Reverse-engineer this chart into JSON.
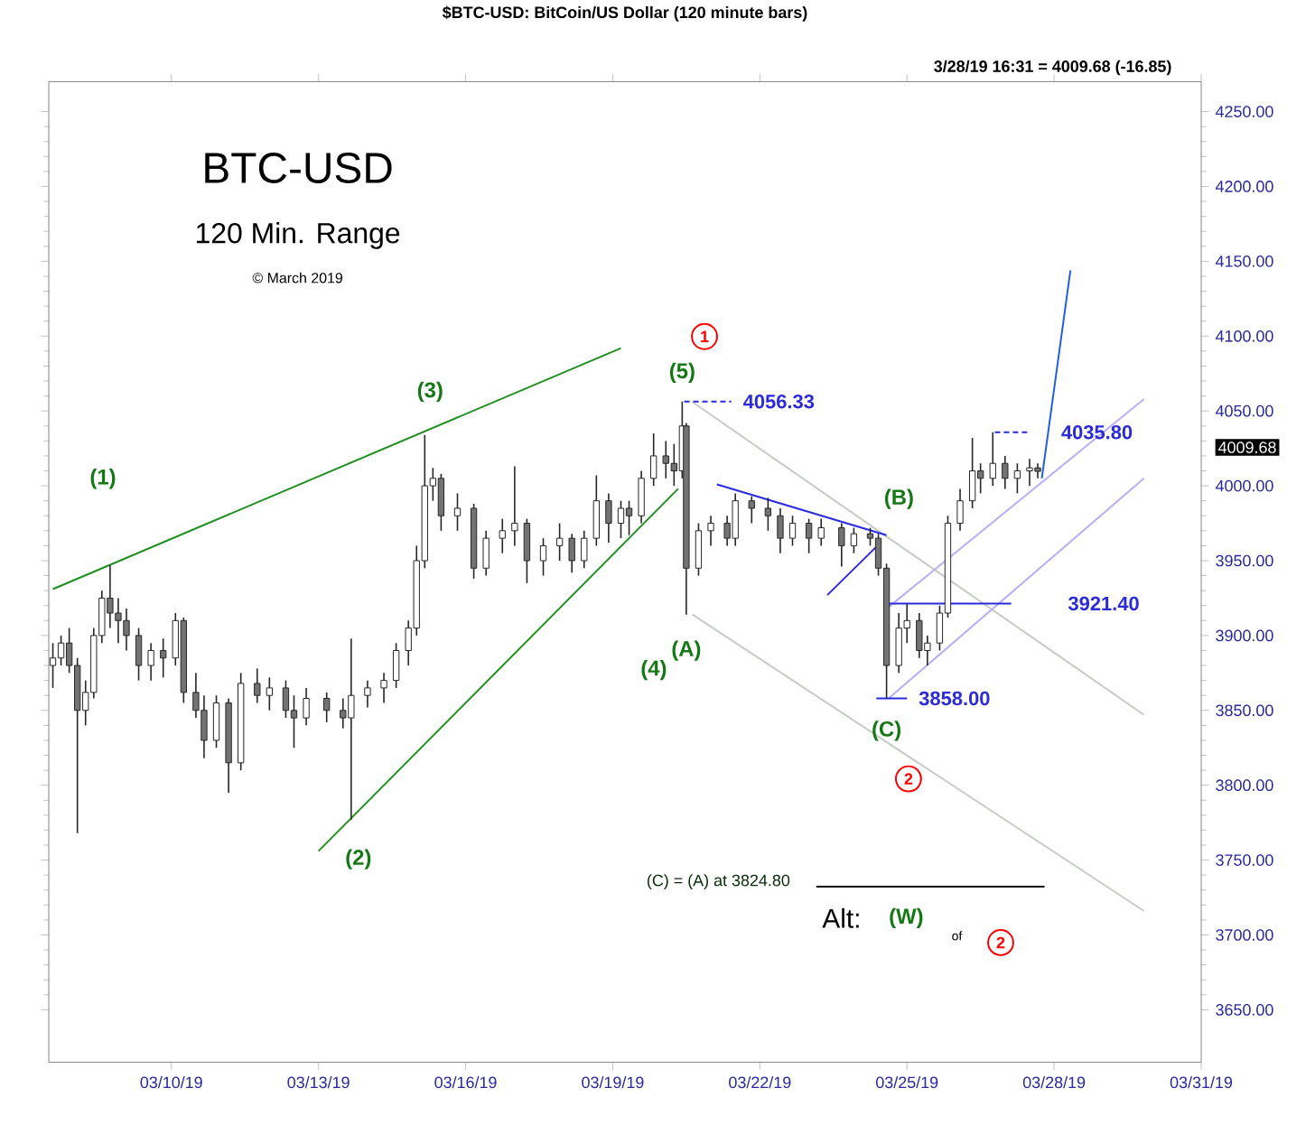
{
  "chart_data": {
    "type": "candlestick",
    "title": "$BTC-USD:  BitCoin/US Dollar  (120 minute bars)",
    "subtitle": "3/28/19 16:31 = 4009.68 (-16.85)",
    "x": [
      "2019-03-07T14:00",
      "2019-03-07T18:00",
      "2019-03-07T22:00",
      "2019-03-08T02:00",
      "2019-03-08T06:00",
      "2019-03-08T10:00",
      "2019-03-08T14:00",
      "2019-03-08T18:00",
      "2019-03-08T22:00",
      "2019-03-09T02:00",
      "2019-03-09T08:00",
      "2019-03-09T14:00",
      "2019-03-09T20:00",
      "2019-03-10T02:00",
      "2019-03-10T06:00",
      "2019-03-10T12:00",
      "2019-03-10T16:00",
      "2019-03-10T22:00",
      "2019-03-11T04:00",
      "2019-03-11T10:00",
      "2019-03-11T18:00",
      "2019-03-12T00:00",
      "2019-03-12T08:00",
      "2019-03-12T12:00",
      "2019-03-12T18:00",
      "2019-03-13T04:00",
      "2019-03-13T12:00",
      "2019-03-13T16:00",
      "2019-03-14T00:00",
      "2019-03-14T08:00",
      "2019-03-14T14:00",
      "2019-03-14T20:00",
      "2019-03-15T00:00",
      "2019-03-15T04:00",
      "2019-03-15T08:00",
      "2019-03-15T12:00",
      "2019-03-15T20:00",
      "2019-03-16T04:00",
      "2019-03-16T10:00",
      "2019-03-16T18:00",
      "2019-03-17T00:00",
      "2019-03-17T06:00",
      "2019-03-17T14:00",
      "2019-03-17T22:00",
      "2019-03-18T04:00",
      "2019-03-18T10:00",
      "2019-03-18T16:00",
      "2019-03-18T22:00",
      "2019-03-19T04:00",
      "2019-03-19T08:00",
      "2019-03-19T14:00",
      "2019-03-19T20:00",
      "2019-03-20T02:00",
      "2019-03-20T06:00",
      "2019-03-20T10:00",
      "2019-03-20T12:00",
      "2019-03-20T18:00",
      "2019-03-21T00:00",
      "2019-03-21T08:00",
      "2019-03-21T12:00",
      "2019-03-21T20:00",
      "2019-03-22T04:00",
      "2019-03-22T10:00",
      "2019-03-22T16:00",
      "2019-03-23T00:00",
      "2019-03-23T06:00",
      "2019-03-23T16:00",
      "2019-03-23T22:00",
      "2019-03-24T06:00",
      "2019-03-24T10:00",
      "2019-03-24T14:00",
      "2019-03-24T20:00",
      "2019-03-25T00:00",
      "2019-03-25T06:00",
      "2019-03-25T10:00",
      "2019-03-25T16:00",
      "2019-03-25T20:00",
      "2019-03-26T02:00",
      "2019-03-26T08:00",
      "2019-03-26T12:00",
      "2019-03-26T18:00",
      "2019-03-27T00:00",
      "2019-03-27T06:00",
      "2019-03-27T12:00",
      "2019-03-27T16:00"
    ],
    "ohlc": [
      [
        3880,
        3895,
        3865,
        3885
      ],
      [
        3885,
        3900,
        3880,
        3895
      ],
      [
        3895,
        3905,
        3875,
        3880
      ],
      [
        3880,
        3885,
        3768,
        3850
      ],
      [
        3850,
        3870,
        3840,
        3862
      ],
      [
        3862,
        3905,
        3858,
        3900
      ],
      [
        3900,
        3930,
        3895,
        3925
      ],
      [
        3925,
        3947,
        3905,
        3915
      ],
      [
        3915,
        3925,
        3895,
        3910
      ],
      [
        3910,
        3918,
        3890,
        3900
      ],
      [
        3900,
        3905,
        3870,
        3880
      ],
      [
        3880,
        3895,
        3870,
        3890
      ],
      [
        3890,
        3898,
        3872,
        3885
      ],
      [
        3885,
        3915,
        3880,
        3910
      ],
      [
        3910,
        3912,
        3855,
        3862
      ],
      [
        3862,
        3875,
        3845,
        3850
      ],
      [
        3850,
        3860,
        3818,
        3830
      ],
      [
        3830,
        3860,
        3825,
        3855
      ],
      [
        3855,
        3858,
        3795,
        3815
      ],
      [
        3815,
        3875,
        3810,
        3868
      ],
      [
        3868,
        3878,
        3855,
        3860
      ],
      [
        3860,
        3872,
        3850,
        3865
      ],
      [
        3865,
        3870,
        3845,
        3850
      ],
      [
        3850,
        3860,
        3825,
        3845
      ],
      [
        3845,
        3865,
        3840,
        3858
      ],
      [
        3858,
        3862,
        3842,
        3850
      ],
      [
        3850,
        3858,
        3838,
        3845
      ],
      [
        3845,
        3898,
        3777,
        3860
      ],
      [
        3860,
        3870,
        3852,
        3865
      ],
      [
        3865,
        3875,
        3855,
        3870
      ],
      [
        3870,
        3895,
        3865,
        3890
      ],
      [
        3890,
        3910,
        3880,
        3905
      ],
      [
        3905,
        3960,
        3900,
        3950
      ],
      [
        3950,
        4034,
        3945,
        4000
      ],
      [
        4000,
        4012,
        3990,
        4005
      ],
      [
        4005,
        4008,
        3970,
        3980
      ],
      [
        3980,
        3995,
        3970,
        3985
      ],
      [
        3985,
        3988,
        3938,
        3945
      ],
      [
        3945,
        3970,
        3940,
        3965
      ],
      [
        3965,
        3978,
        3955,
        3970
      ],
      [
        3970,
        4013,
        3960,
        3975
      ],
      [
        3975,
        3978,
        3935,
        3950
      ],
      [
        3950,
        3965,
        3940,
        3960
      ],
      [
        3960,
        3975,
        3950,
        3965
      ],
      [
        3965,
        3968,
        3942,
        3950
      ],
      [
        3950,
        3970,
        3945,
        3965
      ],
      [
        3965,
        4007,
        3960,
        3990
      ],
      [
        3990,
        3995,
        3962,
        3975
      ],
      [
        3975,
        3990,
        3965,
        3985
      ],
      [
        3985,
        3990,
        3967,
        3980
      ],
      [
        3980,
        4010,
        3975,
        4005
      ],
      [
        4005,
        4035,
        4000,
        4020
      ],
      [
        4020,
        4030,
        4005,
        4015
      ],
      [
        4015,
        4028,
        4000,
        4010
      ],
      [
        4010,
        4056.33,
        4005,
        4040
      ],
      [
        4040,
        4042,
        3914,
        3945
      ],
      [
        3945,
        3975,
        3940,
        3970
      ],
      [
        3970,
        3980,
        3960,
        3975
      ],
      [
        3975,
        3980,
        3960,
        3965
      ],
      [
        3965,
        3995,
        3960,
        3990
      ],
      [
        3990,
        3993,
        3975,
        3985
      ],
      [
        3985,
        3992,
        3970,
        3980
      ],
      [
        3980,
        3985,
        3955,
        3965
      ],
      [
        3965,
        3980,
        3960,
        3975
      ],
      [
        3975,
        3978,
        3955,
        3965
      ],
      [
        3965,
        3978,
        3960,
        3972
      ],
      [
        3972,
        3975,
        3946,
        3960
      ],
      [
        3960,
        3972,
        3955,
        3968
      ],
      [
        3968,
        3972,
        3960,
        3965
      ],
      [
        3965,
        3968,
        3940,
        3945
      ],
      [
        3945,
        3948,
        3858,
        3880
      ],
      [
        3880,
        3915,
        3875,
        3905
      ],
      [
        3905,
        3921,
        3895,
        3910
      ],
      [
        3910,
        3915,
        3885,
        3890
      ],
      [
        3890,
        3900,
        3880,
        3895
      ],
      [
        3895,
        3920,
        3890,
        3915
      ],
      [
        3915,
        3980,
        3912,
        3975
      ],
      [
        3975,
        3998,
        3970,
        3990
      ],
      [
        3990,
        4032,
        3985,
        4010
      ],
      [
        4010,
        4015,
        3995,
        4005
      ],
      [
        4005,
        4035.8,
        4000,
        4015
      ],
      [
        4015,
        4020,
        3998,
        4005
      ],
      [
        4005,
        4015,
        3995,
        4010
      ],
      [
        4010,
        4018,
        4000,
        4012
      ],
      [
        4012,
        4015,
        4005,
        4009.68
      ]
    ],
    "series": [
      {
        "type": "line",
        "color": "#1f8f1f",
        "x": [
          "2019-03-07T14:00",
          "2019-03-19T04:00"
        ],
        "values": [
          3931,
          4092
        ]
      },
      {
        "type": "line",
        "color": "#1f8f1f",
        "x": [
          "2019-03-13T00:00",
          "2019-03-20T08:00"
        ],
        "values": [
          3756,
          3998
        ]
      },
      {
        "type": "line",
        "color": "#c4ccc4",
        "x": [
          "2019-03-20T15:00",
          "2019-03-29T20:00"
        ],
        "values": [
          4056,
          3847
        ]
      },
      {
        "type": "line",
        "color": "#c4ccc4",
        "x": [
          "2019-03-20T15:00",
          "2019-03-29T20:00"
        ],
        "values": [
          3914,
          3716
        ]
      },
      {
        "type": "line",
        "color": "#2a2ae0",
        "x": [
          "2019-03-21T03:00",
          "2019-03-24T14:00"
        ],
        "values": [
          4001,
          3967
        ]
      },
      {
        "type": "line",
        "color": "#2a2ae0",
        "x": [
          "2019-03-23T09:00",
          "2019-03-24T11:00"
        ],
        "values": [
          3927,
          3962
        ]
      },
      {
        "type": "line",
        "color": "#b9aef5",
        "x": [
          "2019-03-24T15:00",
          "2019-03-29T20:00"
        ],
        "values": [
          3919,
          4058
        ]
      },
      {
        "type": "line",
        "color": "#b9aef5",
        "x": [
          "2019-03-24T15:00",
          "2019-03-29T20:00"
        ],
        "values": [
          3858,
          4005
        ]
      },
      {
        "type": "line",
        "color": "#2a2ae0",
        "line_style": "dashed",
        "x": [
          "2019-03-20T11:00",
          "2019-03-21T10:00"
        ],
        "values": [
          4056.33,
          4056.33
        ]
      },
      {
        "type": "line",
        "color": "#2a2ae0",
        "line_style": "dashed",
        "x": [
          "2019-03-26T19:00",
          "2019-03-27T12:00"
        ],
        "values": [
          4035.8,
          4035.8
        ]
      },
      {
        "type": "line",
        "color": "#2a2ae0",
        "x": [
          "2019-03-24T15:00",
          "2019-03-27T03:00"
        ],
        "values": [
          3921.4,
          3921.4
        ]
      },
      {
        "type": "line",
        "color": "#2a2ae0",
        "x": [
          "2019-03-24T09:00",
          "2019-03-25T00:00"
        ],
        "values": [
          3858,
          3858
        ]
      },
      {
        "type": "line",
        "color": "#1f5fe0",
        "x": [
          "2019-03-27T18:00",
          "2019-03-28T08:00"
        ],
        "values": [
          4005,
          4144
        ]
      }
    ],
    "annotations": [
      "BTC-USD",
      "120 Min. Range",
      "© March 2019",
      "(1)",
      {
        "text": "(2)",
        "x": "2019-03-13T16:00",
        "y": 3777
      },
      {
        "text": "(3)",
        "x": "2019-03-15T04:00",
        "y": 4034
      },
      "(4)",
      {
        "text": "(5)",
        "x": "2019-03-20T10:00",
        "y": 4056.33
      },
      {
        "text": "(A)",
        "x": "2019-03-20T12:00",
        "y": 3914
      },
      {
        "text": "(B)",
        "x": "2019-03-24T06:00",
        "y": 3972
      },
      {
        "text": "(C)",
        "x": "2019-03-24T14:00",
        "y": 3858
      },
      "1",
      "2",
      "(C) = (A)  at 3824.80",
      "Alt:",
      "(W)",
      "of",
      "2",
      {
        "text": "4056.33",
        "x": "2019-03-21T10:00",
        "y": 4056.33
      },
      {
        "text": "4035.80",
        "x": "2019-03-27T12:00",
        "y": 4035.8
      },
      {
        "text": "3921.40",
        "x": "2019-03-27T03:00",
        "y": 3921.4
      },
      {
        "text": "3858.00",
        "x": "2019-03-25T00:00",
        "y": 3858
      },
      "4009.68"
    ],
    "xlim": [
      "2019-03-07T12:00",
      "2019-03-31"
    ],
    "xticks": [
      {
        "value": "2019-03-10",
        "label": "03/10/19"
      },
      {
        "value": "2019-03-13",
        "label": "03/13/19"
      },
      {
        "value": "2019-03-16",
        "label": "03/16/19"
      },
      {
        "value": "2019-03-19",
        "label": "03/19/19"
      },
      {
        "value": "2019-03-22",
        "label": "03/22/19"
      },
      {
        "value": "2019-03-25",
        "label": "03/25/19"
      },
      {
        "value": "2019-03-28",
        "label": "03/28/19"
      },
      {
        "value": "2019-03-31",
        "label": "03/31/19"
      }
    ],
    "ylim": [
      3615,
      4270
    ],
    "yticks": [
      {
        "value": 3650,
        "label": "3650.00"
      },
      {
        "value": 3700,
        "label": "3700.00"
      },
      {
        "value": 3750,
        "label": "3750.00"
      },
      {
        "value": 3800,
        "label": "3800.00"
      },
      {
        "value": 3850,
        "label": "3850.00"
      },
      {
        "value": 3900,
        "label": "3900.00"
      },
      {
        "value": 3950,
        "label": "3950.00"
      },
      {
        "value": 4000,
        "label": "4000.00"
      },
      {
        "value": 4050,
        "label": "4050.00"
      },
      {
        "value": 4100,
        "label": "4100.00"
      },
      {
        "value": 4150,
        "label": "4150.00"
      },
      {
        "value": 4200,
        "label": "4200.00"
      },
      {
        "value": 4250,
        "label": "4250.00"
      }
    ]
  }
}
